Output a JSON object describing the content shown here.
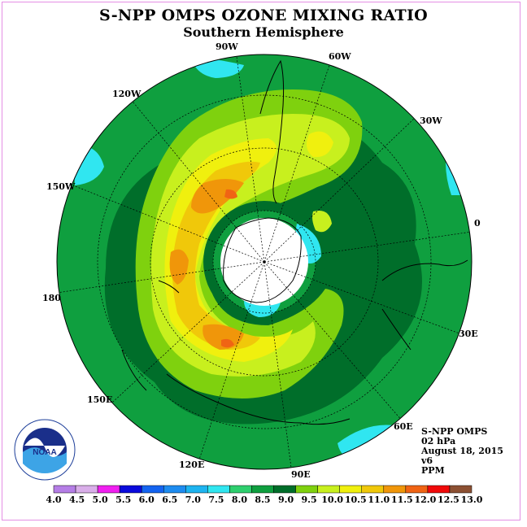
{
  "title": "S-NPP OMPS OZONE MIXING RATIO",
  "subtitle": "Southern Hemisphere",
  "info": {
    "instrument": "S-NPP OMPS",
    "level": "02 hPa",
    "date": "August 18, 2015",
    "version": "v6",
    "unit": "PPM"
  },
  "longitude_labels": [
    "90W",
    "60W",
    "30W",
    "0",
    "30E",
    "60E",
    "90E",
    "120E",
    "150E",
    "180",
    "150W",
    "120W"
  ],
  "colorbar": {
    "ticks": [
      "4.0",
      "4.5",
      "5.0",
      "5.5",
      "6.0",
      "6.5",
      "7.0",
      "7.5",
      "8.0",
      "8.5",
      "9.0",
      "9.5",
      "10.0",
      "10.5",
      "11.0",
      "11.5",
      "12.0",
      "12.5",
      "13.0"
    ],
    "colors": [
      "#b57ee6",
      "#d9aee9",
      "#f01ff0",
      "#0a0adc",
      "#1464f0",
      "#1e8cf0",
      "#1eb4f0",
      "#30e6f0",
      "#2ecf6e",
      "#0f9f3f",
      "#006e2a",
      "#7fd10e",
      "#c8f01e",
      "#f0f00e",
      "#f0c80a",
      "#f0960a",
      "#f06414",
      "#f00a0a",
      "#8c5032"
    ]
  },
  "logo": {
    "text": "NOAA",
    "ring_text": "NATIONAL OCEANIC AND ATMOSPHERIC ADMINISTRATION · U.S. DEPARTMENT OF COMMERCE"
  }
}
